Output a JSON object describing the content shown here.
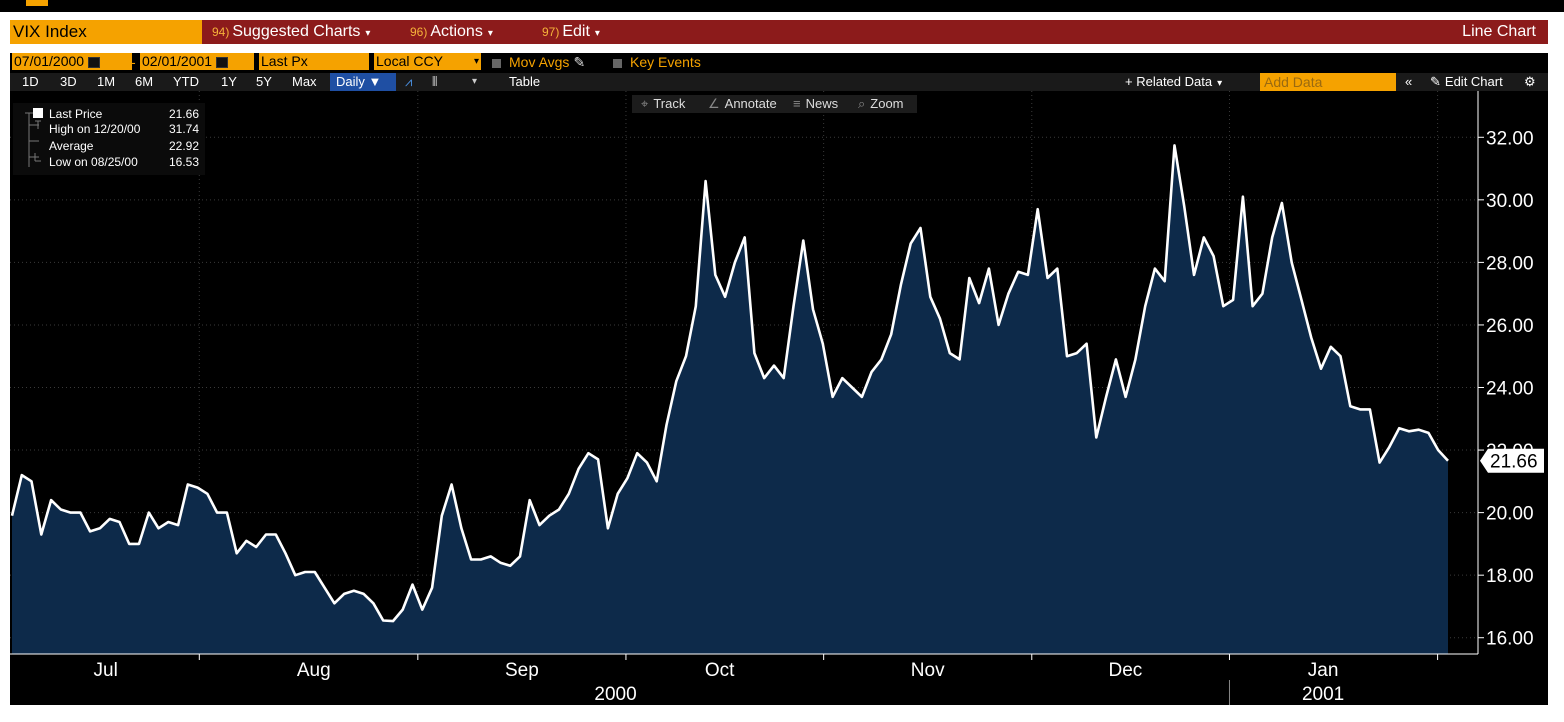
{
  "header": {
    "ticker": "VIX Index",
    "menus": [
      {
        "num": "94)",
        "label": "Suggested Charts"
      },
      {
        "num": "96)",
        "label": "Actions"
      },
      {
        "num": "97)",
        "label": "Edit"
      }
    ],
    "chart_type_label": "Line Chart"
  },
  "controls": {
    "start_date": "07/01/2000",
    "date_separator": "-",
    "end_date": "02/01/2001",
    "field": "Last Px",
    "currency": "Local CCY",
    "mov_avgs": "Mov Avgs",
    "key_events": "Key Events"
  },
  "toolbar": {
    "periods": [
      "1D",
      "3D",
      "1M",
      "6M",
      "YTD",
      "1Y",
      "5Y",
      "Max"
    ],
    "frequency": "Daily ▼",
    "table_label": "Table",
    "related_data": "+ Related Data",
    "add_data_placeholder": "Add Data",
    "edit_chart": "Edit Chart"
  },
  "chart_tools": {
    "track": "Track",
    "annotate": "Annotate",
    "news": "News",
    "zoom": "Zoom"
  },
  "legend": {
    "last_label": "Last Price",
    "last_value": "21.66",
    "high_label": "High on 12/20/00",
    "high_value": "31.74",
    "avg_label": "Average",
    "avg_value": "22.92",
    "low_label": "Low on 08/25/00",
    "low_value": "16.53"
  },
  "colors": {
    "header_red": "#8c1b1b",
    "amber": "#f5a200",
    "line": "#ffffff",
    "area_fill": "#0d2a4a",
    "background": "#000000"
  },
  "chart_data": {
    "type": "area",
    "title": "VIX Index",
    "series_name": "Last Price",
    "xlabel": "",
    "ylabel": "",
    "ylim": [
      15,
      33
    ],
    "y_ticks": [
      16,
      18,
      20,
      22,
      24,
      26,
      28,
      30,
      32
    ],
    "y_tick_labels": [
      "16.00",
      "18.00",
      "20.00",
      "22.00",
      "24.00",
      "26.00",
      "28.00",
      "30.00",
      "32.00"
    ],
    "last_value_label": "21.66",
    "month_labels": [
      "Jul",
      "Aug",
      "Sep",
      "Oct",
      "Nov",
      "Dec",
      "Jan"
    ],
    "month_positions": [
      9,
      29,
      49,
      68,
      88,
      107,
      126
    ],
    "month_boundaries": [
      18,
      39,
      59,
      78,
      98,
      117,
      137
    ],
    "year_labels": [
      "2000",
      "2001"
    ],
    "year_positions": [
      58,
      126
    ],
    "year_boundary": 117,
    "x_min": 0,
    "x_max": 138,
    "values": [
      19.9,
      21.2,
      21.0,
      19.3,
      20.4,
      20.1,
      20.0,
      20.0,
      19.4,
      19.5,
      19.8,
      19.7,
      19.0,
      19.0,
      20.0,
      19.5,
      19.7,
      19.6,
      20.9,
      20.8,
      20.6,
      20.0,
      20.0,
      18.7,
      19.1,
      18.9,
      19.3,
      19.3,
      18.7,
      18.0,
      18.1,
      18.1,
      17.6,
      17.1,
      17.4,
      17.5,
      17.4,
      17.1,
      16.55,
      16.53,
      16.9,
      17.7,
      16.9,
      17.6,
      19.9,
      20.9,
      19.5,
      18.5,
      18.5,
      18.6,
      18.4,
      18.3,
      18.6,
      20.4,
      19.6,
      19.9,
      20.1,
      20.6,
      21.4,
      21.9,
      21.7,
      19.5,
      20.6,
      21.1,
      21.9,
      21.6,
      21.0,
      22.8,
      24.2,
      25.0,
      26.6,
      30.6,
      27.6,
      26.9,
      28.0,
      28.8,
      25.1,
      24.3,
      24.7,
      24.3,
      26.6,
      28.7,
      26.5,
      25.4,
      23.7,
      24.3,
      24.0,
      23.7,
      24.5,
      24.9,
      25.7,
      27.3,
      28.6,
      29.1,
      26.9,
      26.2,
      25.1,
      24.9,
      27.5,
      26.7,
      27.8,
      26.0,
      27.0,
      27.7,
      27.6,
      29.7,
      27.5,
      27.8,
      25.0,
      25.1,
      25.4,
      22.4,
      23.7,
      24.9,
      23.7,
      24.9,
      26.6,
      27.8,
      27.4,
      31.74,
      29.8,
      27.6,
      28.8,
      28.2,
      26.6,
      26.8,
      30.1,
      26.6,
      27.0,
      28.8,
      29.9,
      28.0,
      26.8,
      25.6,
      24.6,
      25.3,
      25.0,
      23.4,
      23.3,
      23.3,
      21.6,
      22.1,
      22.7,
      22.6,
      22.65,
      22.55,
      22.0,
      21.66
    ]
  }
}
